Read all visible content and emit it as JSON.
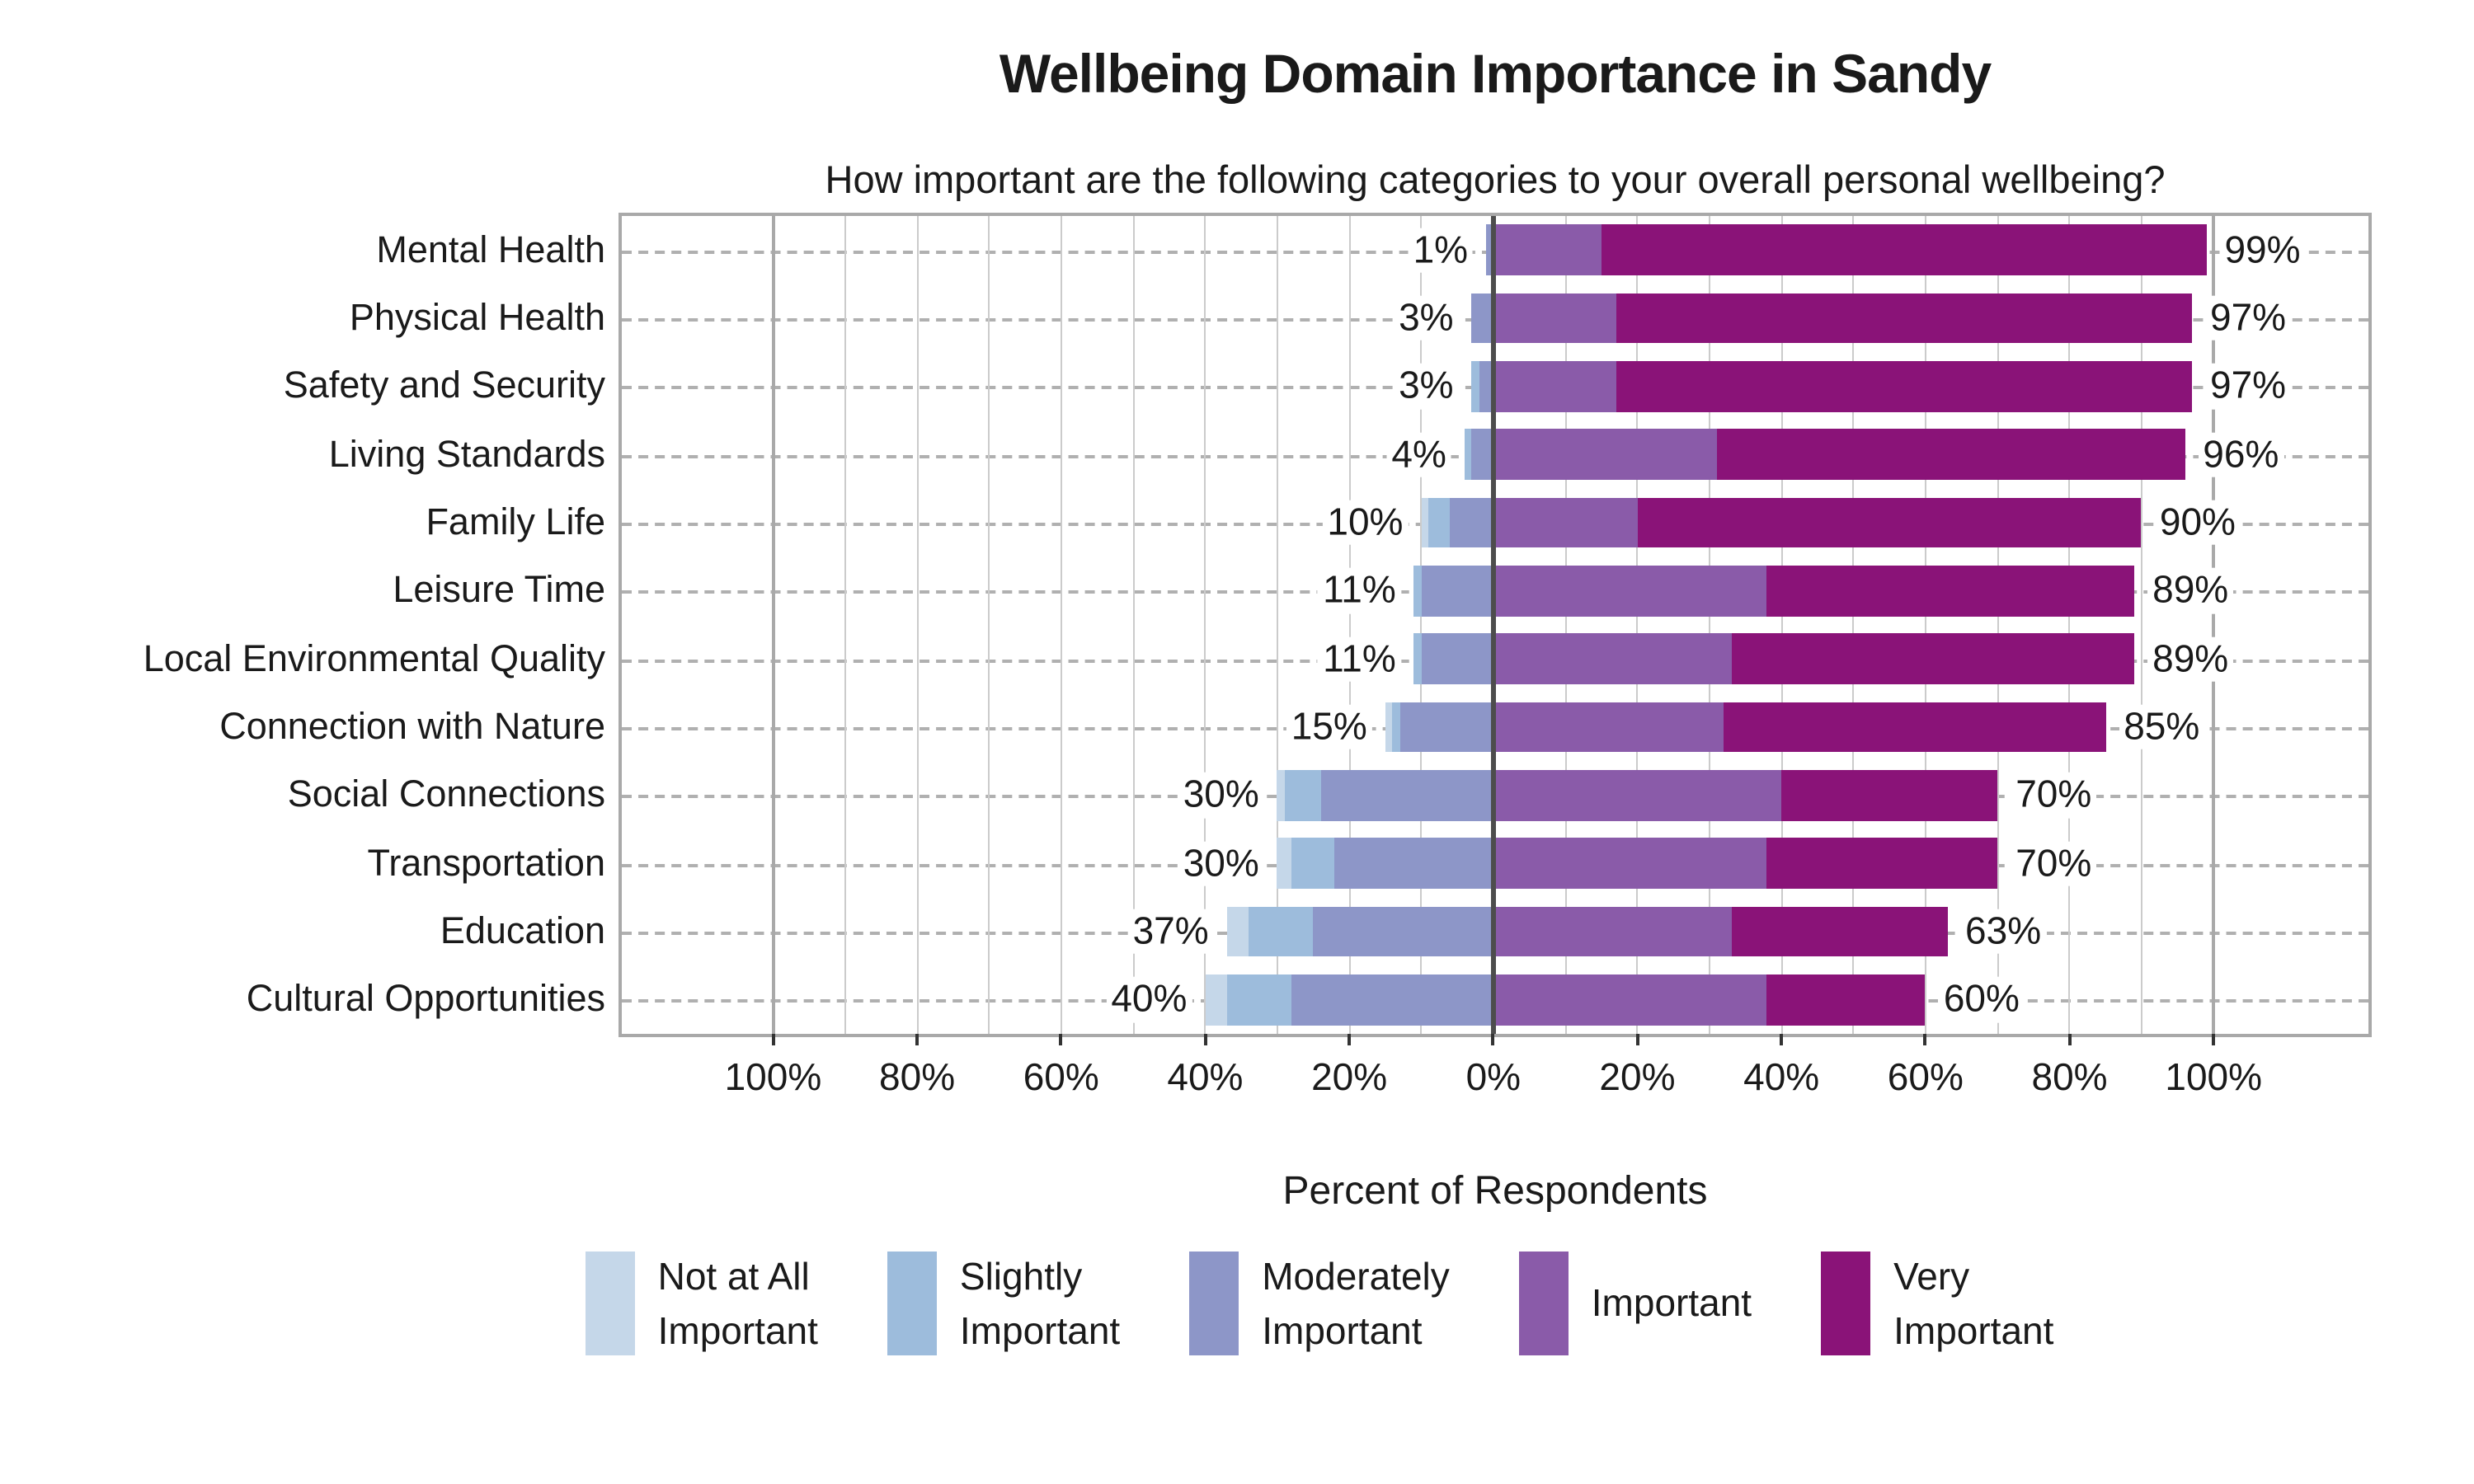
{
  "title": "Wellbeing Domain Importance in Sandy",
  "subtitle": "How important are the following categories to your overall personal wellbeing?",
  "xlabel": "Percent of Respondents",
  "colors": {
    "not_at_all": "#c5d7e9",
    "slightly": "#9dbcdc",
    "moderately": "#8d96c8",
    "important": "#8a5ba9",
    "very_important": "#8a1378",
    "grid_minor": "#cbcbcb",
    "grid_major": "#a9a9a9",
    "zero_line": "#4d4d4d"
  },
  "chart_data": {
    "type": "bar",
    "subtype": "diverging-stacked-likert",
    "title": "Wellbeing Domain Importance in Sandy",
    "subtitle": "How important are the following categories to your overall personal wellbeing?",
    "xlabel": "Percent of Respondents",
    "ylabel": "",
    "grid": "on",
    "legend_position": "bottom",
    "categories": [
      "Mental Health",
      "Physical Health",
      "Safety and Security",
      "Living Standards",
      "Family Life",
      "Leisure Time",
      "Local Environmental Quality",
      "Connection with Nature",
      "Social Connections",
      "Transportation",
      "Education",
      "Cultural Opportunities"
    ],
    "series": [
      {
        "name": "Not at All Important",
        "side": "left",
        "color": "#c5d7e9",
        "values": [
          0,
          0,
          0,
          0,
          1,
          0,
          0,
          1,
          1,
          2,
          3,
          3
        ]
      },
      {
        "name": "Slightly Important",
        "side": "left",
        "color": "#9dbcdc",
        "values": [
          0,
          0,
          1,
          1,
          3,
          1,
          1,
          1,
          5,
          6,
          9,
          9
        ]
      },
      {
        "name": "Moderately Important",
        "side": "left",
        "color": "#8d96c8",
        "values": [
          1,
          3,
          2,
          3,
          6,
          10,
          10,
          13,
          24,
          22,
          25,
          28
        ]
      },
      {
        "name": "Important",
        "side": "right",
        "color": "#8a5ba9",
        "values": [
          15,
          17,
          17,
          31,
          20,
          38,
          33,
          32,
          40,
          38,
          33,
          38
        ]
      },
      {
        "name": "Very Important",
        "side": "right",
        "color": "#8a1378",
        "values": [
          84,
          80,
          80,
          65,
          70,
          51,
          56,
          53,
          30,
          32,
          30,
          22
        ]
      }
    ],
    "left_total_labels": [
      "1%",
      "3%",
      "3%",
      "4%",
      "10%",
      "11%",
      "11%",
      "15%",
      "30%",
      "30%",
      "37%",
      "40%"
    ],
    "right_total_labels": [
      "99%",
      "97%",
      "97%",
      "96%",
      "90%",
      "89%",
      "89%",
      "85%",
      "70%",
      "70%",
      "63%",
      "60%"
    ],
    "x_axis": {
      "range": [
        -121,
        121.5
      ],
      "minor_grid_step": 10,
      "minor_grid_extent": [
        -90,
        90
      ],
      "hundred_lines": [
        -100,
        100
      ],
      "tick_values": [
        -100,
        -80,
        -60,
        -40,
        -20,
        0,
        20,
        40,
        60,
        80,
        100
      ],
      "tick_labels": [
        "100%",
        "80%",
        "60%",
        "40%",
        "20%",
        "0%",
        "20%",
        "40%",
        "60%",
        "80%",
        "100%"
      ]
    },
    "legend": [
      {
        "label": "Not at All\nImportant",
        "color": "#c5d7e9"
      },
      {
        "label": "Slightly\nImportant",
        "color": "#9dbcdc"
      },
      {
        "label": "Moderately\nImportant",
        "color": "#8d96c8"
      },
      {
        "label": "Important",
        "color": "#8a5ba9"
      },
      {
        "label": "Very\nImportant",
        "color": "#8a1378"
      }
    ]
  }
}
